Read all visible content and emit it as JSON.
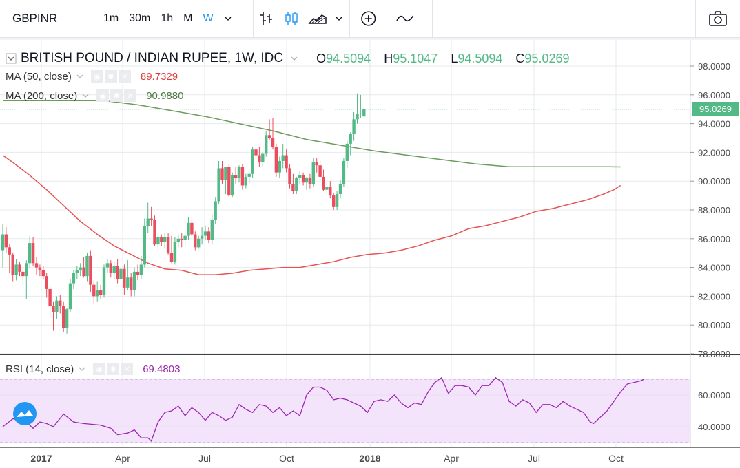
{
  "toolbar": {
    "symbol": "GBPINR",
    "intervals": [
      "1m",
      "30m",
      "1h",
      "M",
      "W"
    ],
    "active_interval": "W",
    "interval_dropdown_icon": "chevron-down-icon",
    "chart_type_icons": [
      "bar-chart-icon",
      "candlestick-icon",
      "area-chart-icon"
    ],
    "tools_icons": [
      "add-indicator-icon",
      "compare-icon"
    ],
    "snapshot_icon": "camera-icon"
  },
  "legend": {
    "title": "BRITISH POUND / INDIAN RUPEE, 1W, IDC",
    "o_label": "O",
    "o": "94.5094",
    "h_label": "H",
    "h": "95.1047",
    "l_label": "L",
    "l": "94.5094",
    "c_label": "C",
    "c": "95.0269",
    "ma50_label": "MA (50, close)",
    "ma50_value": "89.7329",
    "ma200_label": "MA (200, close)",
    "ma200_value": "90.9880",
    "rsi_label": "RSI (14, close)",
    "rsi_value": "69.4803",
    "last_price": "95.0269"
  },
  "colors": {
    "up": "#53b987",
    "down": "#eb4d5c",
    "ma50": "#e55353",
    "ma200": "#6b9a5d",
    "rsi": "#9c27b0",
    "rsi_band": "#f3e4fb",
    "grid": "#e6e9ee",
    "axis_text": "#4a4a4a"
  },
  "chart_data": {
    "type": "candlestick",
    "price_axis": {
      "min": 78,
      "max": 99,
      "ticks": [
        "98.0000",
        "96.0000",
        "94.0000",
        "92.0000",
        "90.0000",
        "88.0000",
        "86.0000",
        "84.0000",
        "82.0000",
        "80.0000",
        "78.0000"
      ]
    },
    "rsi_axis": {
      "ticks": [
        "60.0000",
        "40.0000"
      ],
      "band": [
        30,
        70
      ]
    },
    "x_axis": {
      "labels": [
        "2017",
        "Apr",
        "Jul",
        "Oct",
        "2018",
        "Apr",
        "Jul",
        "Oct"
      ]
    },
    "candles": [
      [
        85.2,
        87.0,
        84.0,
        86.3
      ],
      [
        86.3,
        86.8,
        85.0,
        85.4
      ],
      [
        85.4,
        85.6,
        83.6,
        84.9
      ],
      [
        84.9,
        85.0,
        83.0,
        83.5
      ],
      [
        83.5,
        84.6,
        83.1,
        84.2
      ],
      [
        84.2,
        84.4,
        83.4,
        83.7
      ],
      [
        83.7,
        84.0,
        82.8,
        83.4
      ],
      [
        83.4,
        84.5,
        81.8,
        84.3
      ],
      [
        84.3,
        86.2,
        83.9,
        85.7
      ],
      [
        85.7,
        86.1,
        84.1,
        84.3
      ],
      [
        84.3,
        84.7,
        83.5,
        84.0
      ],
      [
        84.0,
        84.2,
        83.4,
        83.8
      ],
      [
        83.8,
        84.1,
        83.2,
        83.4
      ],
      [
        83.4,
        83.6,
        81.9,
        82.5
      ],
      [
        82.5,
        82.7,
        80.6,
        81.3
      ],
      [
        81.3,
        81.6,
        79.6,
        80.9
      ],
      [
        80.9,
        82.0,
        80.4,
        81.7
      ],
      [
        81.7,
        82.1,
        80.8,
        81.3
      ],
      [
        81.3,
        81.6,
        79.5,
        79.8
      ],
      [
        79.8,
        81.2,
        79.4,
        81.1
      ],
      [
        81.1,
        83.2,
        80.9,
        82.9
      ],
      [
        82.9,
        83.8,
        82.5,
        83.6
      ],
      [
        83.6,
        84.1,
        83.2,
        83.8
      ],
      [
        83.8,
        84.3,
        83.4,
        84.0
      ],
      [
        84.0,
        84.7,
        83.3,
        83.4
      ],
      [
        83.4,
        85.0,
        83.0,
        84.8
      ],
      [
        84.8,
        85.2,
        82.3,
        82.8
      ],
      [
        82.8,
        83.1,
        81.5,
        82.0
      ],
      [
        82.0,
        83.0,
        81.6,
        82.4
      ],
      [
        82.4,
        82.8,
        81.8,
        82.1
      ],
      [
        82.1,
        84.2,
        81.9,
        84.0
      ],
      [
        84.0,
        84.6,
        83.6,
        84.3
      ],
      [
        84.3,
        84.5,
        83.3,
        83.6
      ],
      [
        83.6,
        84.4,
        83.2,
        84.1
      ],
      [
        84.1,
        84.6,
        82.9,
        83.2
      ],
      [
        83.2,
        84.8,
        82.7,
        83.9
      ],
      [
        83.9,
        84.2,
        82.1,
        82.6
      ],
      [
        82.6,
        84.5,
        82.4,
        83.3
      ],
      [
        83.3,
        83.6,
        82.0,
        82.4
      ],
      [
        82.4,
        84.0,
        82.0,
        83.7
      ],
      [
        83.7,
        84.2,
        83.1,
        83.5
      ],
      [
        83.5,
        84.8,
        83.2,
        84.2
      ],
      [
        84.2,
        87.4,
        84.0,
        86.9
      ],
      [
        86.9,
        88.5,
        86.4,
        87.4
      ],
      [
        87.4,
        88.2,
        86.9,
        87.3
      ],
      [
        87.3,
        87.6,
        85.5,
        85.6
      ],
      [
        85.6,
        86.5,
        85.2,
        86.1
      ],
      [
        86.1,
        86.3,
        85.5,
        85.8
      ],
      [
        85.8,
        86.4,
        85.3,
        86.1
      ],
      [
        86.1,
        86.4,
        84.9,
        85.0
      ],
      [
        85.0,
        86.2,
        84.3,
        84.4
      ],
      [
        84.4,
        86.1,
        84.2,
        85.8
      ],
      [
        85.8,
        86.3,
        85.4,
        86.0
      ],
      [
        86.0,
        86.4,
        85.4,
        85.9
      ],
      [
        85.9,
        86.6,
        85.5,
        86.2
      ],
      [
        86.2,
        87.5,
        85.9,
        87.1
      ],
      [
        87.1,
        87.3,
        86.1,
        86.3
      ],
      [
        86.3,
        86.5,
        85.2,
        85.4
      ],
      [
        85.4,
        86.2,
        85.3,
        86.0
      ],
      [
        86.0,
        86.8,
        85.6,
        86.2
      ],
      [
        86.2,
        86.9,
        85.9,
        86.5
      ],
      [
        86.5,
        86.8,
        85.7,
        85.9
      ],
      [
        85.9,
        87.7,
        85.6,
        87.3
      ],
      [
        87.3,
        88.9,
        87.0,
        88.6
      ],
      [
        88.6,
        91.4,
        88.4,
        90.9
      ],
      [
        90.9,
        91.4,
        89.8,
        90.1
      ],
      [
        90.1,
        91.0,
        89.1,
        91.0
      ],
      [
        91.0,
        91.2,
        88.9,
        89.0
      ],
      [
        89.0,
        90.6,
        88.9,
        90.4
      ],
      [
        90.4,
        91.0,
        89.8,
        90.2
      ],
      [
        90.2,
        91.1,
        89.9,
        91.0
      ],
      [
        91.0,
        91.2,
        89.4,
        89.7
      ],
      [
        89.7,
        90.5,
        89.5,
        90.3
      ],
      [
        90.3,
        90.6,
        89.8,
        90.5
      ],
      [
        90.5,
        92.4,
        90.2,
        92.2
      ],
      [
        92.2,
        93.0,
        91.5,
        91.8
      ],
      [
        91.8,
        92.4,
        91.0,
        91.3
      ],
      [
        91.3,
        92.0,
        91.0,
        91.9
      ],
      [
        91.9,
        93.5,
        91.7,
        93.2
      ],
      [
        93.2,
        94.3,
        92.9,
        93.0
      ],
      [
        93.0,
        94.4,
        92.2,
        92.4
      ],
      [
        92.4,
        92.6,
        90.3,
        90.6
      ],
      [
        90.6,
        91.7,
        90.2,
        91.4
      ],
      [
        91.4,
        92.6,
        90.9,
        91.8
      ],
      [
        91.8,
        92.2,
        90.6,
        90.9
      ],
      [
        90.9,
        91.2,
        89.5,
        89.8
      ],
      [
        89.8,
        90.5,
        89.1,
        89.3
      ],
      [
        89.3,
        90.3,
        89.1,
        90.2
      ],
      [
        90.2,
        90.7,
        89.8,
        90.4
      ],
      [
        90.4,
        90.6,
        89.7,
        89.9
      ],
      [
        89.9,
        90.3,
        89.4,
        90.2
      ],
      [
        90.2,
        90.5,
        89.5,
        89.8
      ],
      [
        89.8,
        91.6,
        89.6,
        91.3
      ],
      [
        91.3,
        91.6,
        90.6,
        91.1
      ],
      [
        91.1,
        91.5,
        90.0,
        90.3
      ],
      [
        90.3,
        90.8,
        89.3,
        89.4
      ],
      [
        89.4,
        89.9,
        89.1,
        89.6
      ],
      [
        89.6,
        90.0,
        88.8,
        89.0
      ],
      [
        89.0,
        89.2,
        88.0,
        88.2
      ],
      [
        88.2,
        89.3,
        88.0,
        89.1
      ],
      [
        89.1,
        90.1,
        88.8,
        89.8
      ],
      [
        89.8,
        91.6,
        89.6,
        91.4
      ],
      [
        91.4,
        92.8,
        90.9,
        92.6
      ],
      [
        92.6,
        93.4,
        91.8,
        93.3
      ],
      [
        93.3,
        94.8,
        92.8,
        94.3
      ],
      [
        94.3,
        96.1,
        94.0,
        94.7
      ],
      [
        94.7,
        96.0,
        94.4,
        94.7
      ],
      [
        94.5,
        95.1,
        94.5,
        95.0
      ]
    ],
    "ma50": [
      [
        0,
        91.8
      ],
      [
        3,
        91.3
      ],
      [
        8,
        90.4
      ],
      [
        13,
        89.4
      ],
      [
        18,
        88.3
      ],
      [
        23,
        87.2
      ],
      [
        28,
        86.3
      ],
      [
        33,
        85.5
      ],
      [
        38,
        84.9
      ],
      [
        43,
        84.3
      ],
      [
        48,
        83.9
      ],
      [
        53,
        83.8
      ],
      [
        58,
        83.5
      ],
      [
        63,
        83.5
      ],
      [
        68,
        83.6
      ],
      [
        73,
        83.8
      ],
      [
        78,
        83.9
      ],
      [
        83,
        84.0
      ],
      [
        88,
        84.0
      ],
      [
        93,
        84.2
      ],
      [
        98,
        84.4
      ],
      [
        103,
        84.7
      ],
      [
        108,
        84.9
      ],
      [
        113,
        85.0
      ],
      [
        118,
        85.2
      ],
      [
        123,
        85.5
      ],
      [
        128,
        85.9
      ],
      [
        133,
        86.2
      ],
      [
        138,
        86.7
      ],
      [
        143,
        86.9
      ],
      [
        148,
        87.2
      ],
      [
        153,
        87.5
      ],
      [
        158,
        87.9
      ],
      [
        163,
        88.1
      ],
      [
        168,
        88.4
      ],
      [
        173,
        88.7
      ],
      [
        178,
        89.1
      ],
      [
        181,
        89.4
      ],
      [
        183,
        89.7
      ]
    ],
    "ma200": [
      [
        0,
        95.6
      ],
      [
        10,
        95.6
      ],
      [
        30,
        95.6
      ],
      [
        40,
        95.3
      ],
      [
        50,
        94.9
      ],
      [
        60,
        94.5
      ],
      [
        70,
        94.0
      ],
      [
        80,
        93.5
      ],
      [
        90,
        92.9
      ],
      [
        100,
        92.5
      ],
      [
        110,
        92.1
      ],
      [
        120,
        91.8
      ],
      [
        130,
        91.5
      ],
      [
        140,
        91.2
      ],
      [
        150,
        91.0
      ],
      [
        160,
        91.0
      ],
      [
        170,
        91.0
      ],
      [
        180,
        91.0
      ],
      [
        183,
        90.99
      ]
    ],
    "rsi": [
      [
        0,
        40
      ],
      [
        3,
        45
      ],
      [
        7,
        43
      ],
      [
        9,
        39
      ],
      [
        11,
        43
      ],
      [
        13,
        42
      ],
      [
        15,
        40
      ],
      [
        18,
        48
      ],
      [
        21,
        43
      ],
      [
        24,
        42
      ],
      [
        29,
        41
      ],
      [
        32,
        39
      ],
      [
        34,
        35
      ],
      [
        37,
        36
      ],
      [
        39,
        38
      ],
      [
        41,
        33
      ],
      [
        43,
        33
      ],
      [
        44,
        31
      ],
      [
        46,
        43
      ],
      [
        48,
        49
      ],
      [
        50,
        50
      ],
      [
        52,
        53
      ],
      [
        54,
        47
      ],
      [
        56,
        52
      ],
      [
        58,
        49
      ],
      [
        60,
        44
      ],
      [
        62,
        49
      ],
      [
        64,
        47
      ],
      [
        66,
        44
      ],
      [
        68,
        46
      ],
      [
        70,
        54
      ],
      [
        72,
        51
      ],
      [
        74,
        49
      ],
      [
        76,
        54
      ],
      [
        78,
        53
      ],
      [
        80,
        49
      ],
      [
        82,
        52
      ],
      [
        84,
        47
      ],
      [
        86,
        50
      ],
      [
        88,
        47
      ],
      [
        90,
        60
      ],
      [
        92,
        65
      ],
      [
        94,
        65
      ],
      [
        96,
        63
      ],
      [
        98,
        57
      ],
      [
        100,
        58
      ],
      [
        102,
        57
      ],
      [
        104,
        55
      ],
      [
        106,
        53
      ],
      [
        108,
        49
      ],
      [
        110,
        56
      ],
      [
        112,
        57
      ],
      [
        114,
        56
      ],
      [
        116,
        60
      ],
      [
        118,
        55
      ],
      [
        120,
        52
      ],
      [
        122,
        55
      ],
      [
        124,
        54
      ],
      [
        126,
        62
      ],
      [
        128,
        68
      ],
      [
        130,
        71
      ],
      [
        132,
        61
      ],
      [
        134,
        66
      ],
      [
        136,
        66
      ],
      [
        138,
        65
      ],
      [
        140,
        60
      ],
      [
        142,
        66
      ],
      [
        144,
        66
      ],
      [
        146,
        71
      ],
      [
        148,
        68
      ],
      [
        150,
        56
      ],
      [
        152,
        53
      ],
      [
        154,
        57
      ],
      [
        156,
        55
      ],
      [
        158,
        49
      ],
      [
        160,
        54
      ],
      [
        162,
        54
      ],
      [
        164,
        52
      ],
      [
        166,
        56
      ],
      [
        168,
        53
      ],
      [
        170,
        51
      ],
      [
        172,
        49
      ],
      [
        174,
        43
      ],
      [
        175,
        42
      ],
      [
        177,
        46
      ],
      [
        179,
        50
      ],
      [
        181,
        56
      ],
      [
        183,
        62
      ],
      [
        185,
        67
      ],
      [
        187,
        68
      ],
      [
        189,
        69
      ],
      [
        190,
        70
      ]
    ]
  }
}
